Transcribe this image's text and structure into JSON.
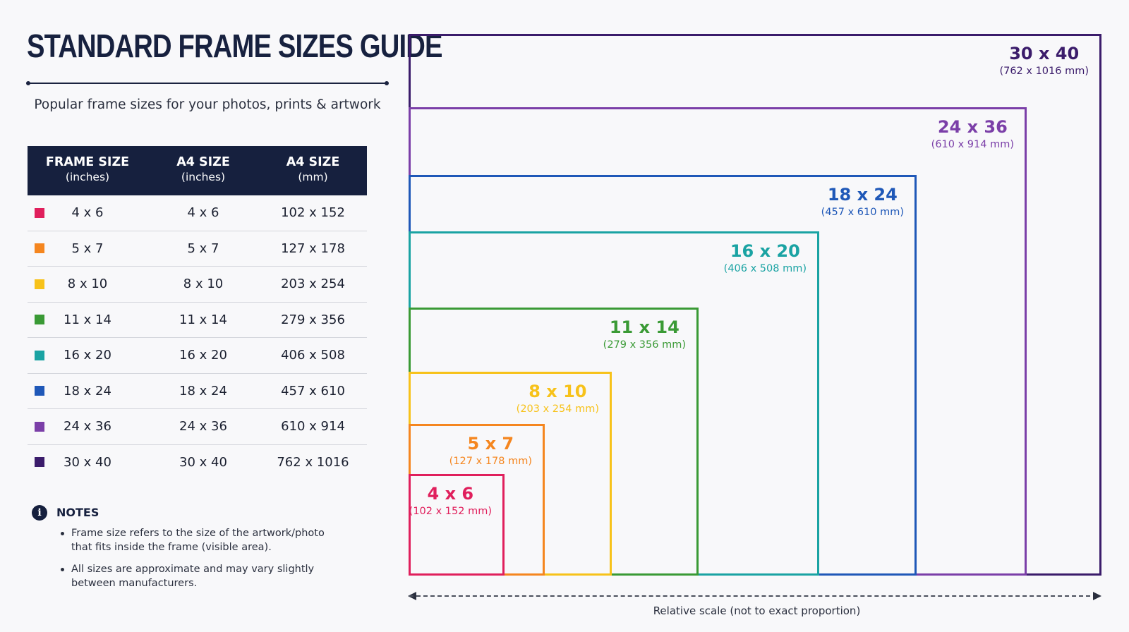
{
  "title": "STANDARD FRAME SIZES GUIDE",
  "subtitle": "Popular frame sizes for your photos, prints & artwork",
  "table": {
    "headers": [
      {
        "main": "FRAME SIZE",
        "sub": "(inches)"
      },
      {
        "main": "A4 SIZE",
        "sub": "(inches)"
      },
      {
        "main": "A4 SIZE",
        "sub": "(mm)"
      }
    ],
    "rows": [
      {
        "color": "#e01f5c",
        "frame": "4 x 6",
        "a4_in": "4 x 6",
        "a4_mm": "102 x 152"
      },
      {
        "color": "#f5861f",
        "frame": "5 x 7",
        "a4_in": "5 x 7",
        "a4_mm": "127 x 178"
      },
      {
        "color": "#f7c21a",
        "frame": "8 x 10",
        "a4_in": "8 x 10",
        "a4_mm": "203 x 254"
      },
      {
        "color": "#3a9a35",
        "frame": "11 x 14",
        "a4_in": "11 x 14",
        "a4_mm": "279 x 356"
      },
      {
        "color": "#1aa3a3",
        "frame": "16 x 20",
        "a4_in": "16 x 20",
        "a4_mm": "406 x 508"
      },
      {
        "color": "#1f58b8",
        "frame": "18 x 24",
        "a4_in": "18 x 24",
        "a4_mm": "457 x 610"
      },
      {
        "color": "#7b3fa8",
        "frame": "24 x 36",
        "a4_in": "24 x 36",
        "a4_mm": "610 x 914"
      },
      {
        "color": "#3b1c6b",
        "frame": "30 x 40",
        "a4_in": "30 x 40",
        "a4_mm": "762 x 1016"
      }
    ]
  },
  "notes": {
    "icon": "info-icon",
    "heading": "NOTES",
    "items": [
      "Frame size refers to the size of the artwork/photo that fits inside the frame (visible area).",
      "All sizes are approximate and may vary slightly between manufacturers."
    ]
  },
  "diagram": {
    "frames": [
      {
        "size": "30 x 40",
        "mm": "(762 x 1016 mm)",
        "color": "#3b1c6b"
      },
      {
        "size": "24 x 36",
        "mm": "(610 x 914 mm)",
        "color": "#7b3fa8"
      },
      {
        "size": "18 x 24",
        "mm": "(457 x 610 mm)",
        "color": "#1f58b8"
      },
      {
        "size": "16 x 20",
        "mm": "(406 x 508 mm)",
        "color": "#1aa3a3"
      },
      {
        "size": "11 x 14",
        "mm": "(279 x 356 mm)",
        "color": "#3a9a35"
      },
      {
        "size": "8 x 10",
        "mm": "(203 x 254 mm)",
        "color": "#f7c21a"
      },
      {
        "size": "5 x 7",
        "mm": "(127 x 178 mm)",
        "color": "#f5861f"
      },
      {
        "size": "4 x 6",
        "mm": "(102 x 152 mm)",
        "color": "#e01f5c"
      }
    ],
    "scale_caption": "Relative scale (not to exact proportion)"
  }
}
